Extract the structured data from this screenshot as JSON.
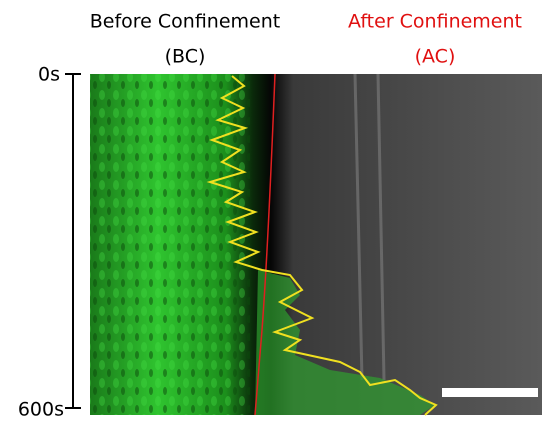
{
  "header": {
    "before": {
      "title": "Before Confinement",
      "abbr": "(BC)"
    },
    "after": {
      "title": "After Confinement",
      "abbr": "(AC)"
    }
  },
  "time_axis": {
    "start": "0s",
    "end": "600s"
  }
}
